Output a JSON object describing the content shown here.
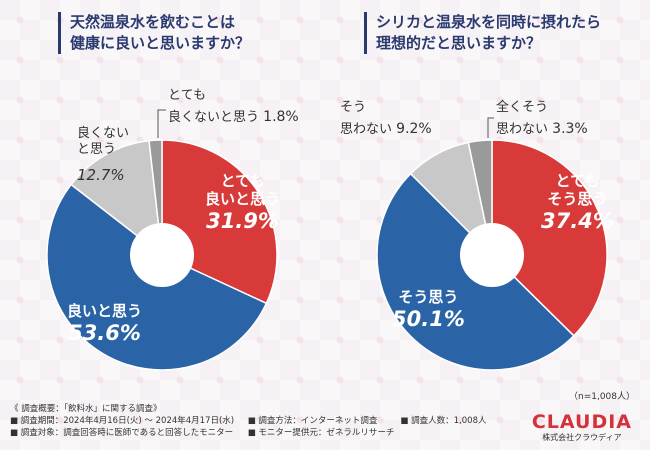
{
  "questions": [
    {
      "line1": "天然温泉水を飲むことは",
      "line2": "健康に良いと思いますか？"
    },
    {
      "line1": "シリカと温泉水を同時に摂れたら",
      "line2": "理想的だと思いますか？"
    }
  ],
  "chart_data": [
    {
      "type": "pie",
      "title": "天然温泉水を飲むことは健康に良いと思いますか？",
      "categories": [
        "とても良いと思う",
        "良いと思う",
        "良くないと思う",
        "とても良くないと思う"
      ],
      "values": [
        31.9,
        53.6,
        12.7,
        1.8
      ],
      "unit": "%",
      "colors": [
        "#d83a3a",
        "#2a64a6",
        "#c8c8c8",
        "#9a9a9a"
      ]
    },
    {
      "type": "pie",
      "title": "シリカと温泉水を同時に摂れたら理想的だと思いますか？",
      "categories": [
        "とてもそう思う",
        "そう思う",
        "そう思わない",
        "全くそう思わない"
      ],
      "values": [
        37.4,
        50.1,
        9.2,
        3.3
      ],
      "unit": "%",
      "colors": [
        "#d83a3a",
        "#2a64a6",
        "#c8c8c8",
        "#9a9a9a"
      ]
    }
  ],
  "labels": {
    "c1": {
      "very_good": {
        "line1": "とても",
        "line2": "良いと思う",
        "pct": "31.9%"
      },
      "good": {
        "line1": "良いと思う",
        "pct": "53.6%"
      },
      "not_good": {
        "line1": "良くない",
        "line2": "と思う",
        "pct": "12.7%"
      },
      "very_not_good": {
        "line1": "とても",
        "line2": "良くないと思う",
        "pct": "1.8%"
      }
    },
    "c2": {
      "very_think": {
        "line1": "とても",
        "line2": "そう思う",
        "pct": "37.4%"
      },
      "think": {
        "line1": "そう思う",
        "pct": "50.1%"
      },
      "not_think": {
        "line1": "そう",
        "line2": "思わない",
        "pct": "9.2%"
      },
      "never_think": {
        "line1": "全くそう",
        "line2": "思わない",
        "pct": "3.3%"
      }
    }
  },
  "sample_note": "（n=1,008人）",
  "footer": {
    "overview": "《 調査概要：「飲料水」に関する調査》",
    "period": "■ 調査期間：2024年4月16日(火) ～ 2024年4月17日(水)",
    "method": "■ 調査方法：インターネット調査",
    "count": "■ 調査人数：1,008人",
    "target": "■ 調査対象：調査回答時に医師であると回答したモニター",
    "provider": "■ モニター提供元：ゼネラルリサーチ"
  },
  "logo": {
    "brand": "CLAUDIA",
    "corp": "株式会社クラウディア"
  }
}
